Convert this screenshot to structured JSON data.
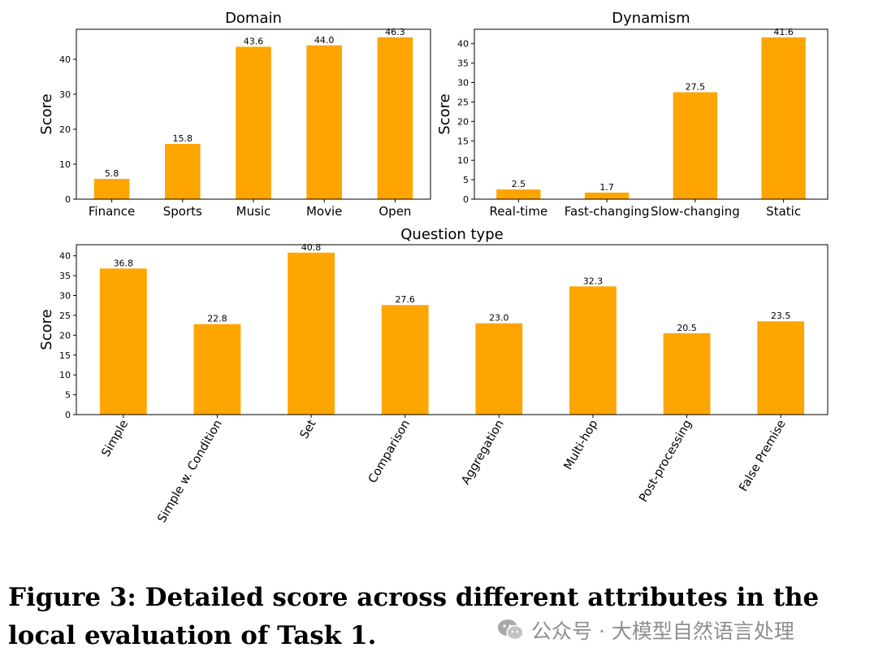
{
  "colors": {
    "bar": "#FFA500",
    "axis": "#000000"
  },
  "chart_data": [
    {
      "id": "domain",
      "type": "bar",
      "title": "Domain",
      "ylabel": "Score",
      "xlabel": "",
      "categories": [
        "Finance",
        "Sports",
        "Music",
        "Movie",
        "Open"
      ],
      "values": [
        5.8,
        15.8,
        43.6,
        44.0,
        46.3
      ],
      "value_labels": [
        "5.8",
        "15.8",
        "43.6",
        "44.0",
        "46.3"
      ],
      "ylim": [
        0,
        48.6
      ],
      "yticks": [
        0,
        10,
        20,
        30,
        40
      ],
      "rotate_xticks": false,
      "grid": false
    },
    {
      "id": "dynamism",
      "type": "bar",
      "title": "Dynamism",
      "ylabel": "Score",
      "xlabel": "",
      "categories": [
        "Real-time",
        "Fast-changing",
        "Slow-changing",
        "Static"
      ],
      "values": [
        2.5,
        1.7,
        27.5,
        41.6
      ],
      "value_labels": [
        "2.5",
        "1.7",
        "27.5",
        "41.6"
      ],
      "ylim": [
        0,
        43.7
      ],
      "yticks": [
        0,
        5,
        10,
        15,
        20,
        25,
        30,
        35,
        40
      ],
      "rotate_xticks": false,
      "grid": false
    },
    {
      "id": "question-type",
      "type": "bar",
      "title": "Question type",
      "ylabel": "Score",
      "xlabel": "",
      "categories": [
        "Simple",
        "Simple w. Condition",
        "Set",
        "Comparison",
        "Aggregation",
        "Multi-hop",
        "Post-processing",
        "False Premise"
      ],
      "values": [
        36.8,
        22.8,
        40.8,
        27.6,
        23.0,
        32.3,
        20.5,
        23.5
      ],
      "value_labels": [
        "36.8",
        "22.8",
        "40.8",
        "27.6",
        "23.0",
        "32.3",
        "20.5",
        "23.5"
      ],
      "ylim": [
        0,
        42.8
      ],
      "yticks": [
        0,
        5,
        10,
        15,
        20,
        25,
        30,
        35,
        40
      ],
      "rotate_xticks": true,
      "grid": false
    }
  ],
  "caption": "Figure 3: Detailed score across different attributes in the local evaluation of Task 1.",
  "watermark": {
    "text": "公众号 · 大模型自然语言处理",
    "icon": "wechat-icon"
  }
}
